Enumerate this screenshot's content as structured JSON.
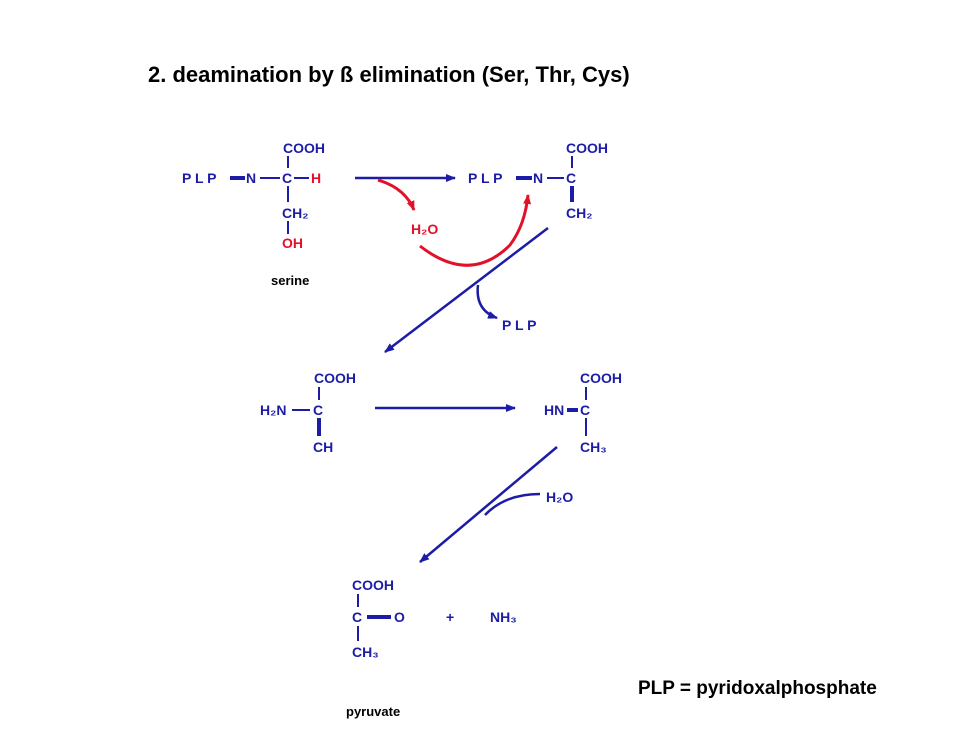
{
  "title": "2. deamination by ß elimination  (Ser, Thr, Cys)",
  "serine": {
    "cooh": "COOH",
    "plp": "P L P",
    "n": "N",
    "c": "C",
    "h": "H",
    "ch2": "CH₂",
    "oh": "OH",
    "name": "serine"
  },
  "step1": {
    "water": "H₂O"
  },
  "imine": {
    "cooh": "COOH",
    "plp": "P L P",
    "n": "N",
    "c": "C",
    "ch2": "CH₂"
  },
  "step2": {
    "released": "P L P"
  },
  "aminoacrylate": {
    "cooh": "COOH",
    "h2n": "H₂N",
    "c": "C",
    "ch": "CH"
  },
  "iminopyruvate": {
    "cooh": "COOH",
    "hn": "HN",
    "c": "C",
    "ch3": "CH₃"
  },
  "step3": {
    "water": "H₂O"
  },
  "pyruvate": {
    "cooh": "COOH",
    "c": "C",
    "o": "O",
    "ch3": "CH₃",
    "name": "pyruvate"
  },
  "plus": "+",
  "ammonia": "NH₃",
  "legend": "PLP = pyridoxalphosphate"
}
